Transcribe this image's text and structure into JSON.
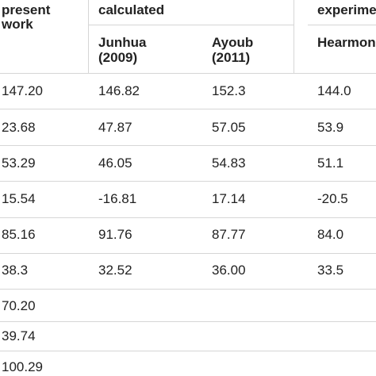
{
  "header": {
    "col0": "present\nwork",
    "group1": "calculated",
    "group2": "experime",
    "sub1": "Junhua\n(2009)",
    "sub2": "Ayoub\n(2011)",
    "sub3": "Hearmon"
  },
  "rows": [
    [
      "147.20",
      "146.82",
      "152.3",
      "144.0"
    ],
    [
      "23.68",
      "47.87",
      "57.05",
      "53.9"
    ],
    [
      "53.29",
      "46.05",
      "54.83",
      "51.1"
    ],
    [
      "15.54",
      "-16.81",
      "17.14",
      "-20.5"
    ],
    [
      "85.16",
      "91.76",
      "87.77",
      "84.0"
    ],
    [
      "38.3",
      "32.52",
      "36.00",
      "33.5"
    ],
    [
      "70.20",
      "",
      "",
      ""
    ],
    [
      "39.74",
      "",
      "",
      ""
    ],
    [
      "100.29",
      "",
      "",
      ""
    ]
  ]
}
